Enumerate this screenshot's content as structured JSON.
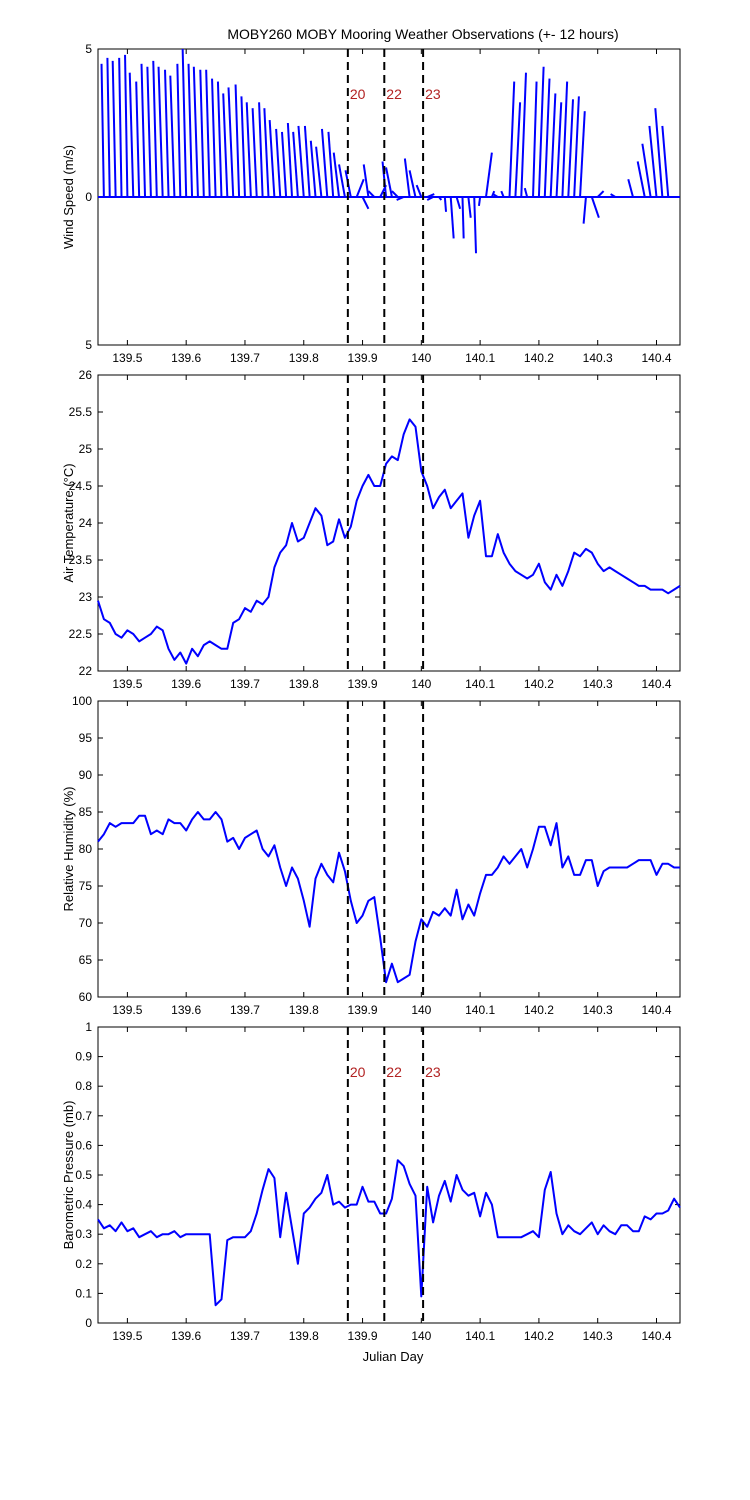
{
  "figure": {
    "title": "MOBY260 MOBY Mooring Weather Observations (+- 12 hours)",
    "xlabel": "Julian Day",
    "colors": {
      "series": "#0000ff",
      "marker_line": "#000000",
      "marker_text": "#b22222",
      "axes": "#000000"
    }
  },
  "chart_data": [
    {
      "type": "line",
      "name": "wind",
      "chart_kind": "wind-stick",
      "ylabel": "Wind Speed (m/s)",
      "xlim": [
        139.45,
        140.44
      ],
      "ylim": [
        -5,
        5
      ],
      "yticklabels": [
        "5",
        "0",
        "5"
      ],
      "xticks": [
        "139.5",
        "139.6",
        "139.7",
        "139.8",
        "139.9",
        "140",
        "140.1",
        "140.2",
        "140.3",
        "140.4"
      ],
      "marker_lines": [
        139.875,
        139.937,
        140.003
      ],
      "marker_labels": [
        "20",
        "22",
        "23"
      ],
      "sticks": [
        {
          "x": 139.46,
          "u": -0.004,
          "v": 4.5
        },
        {
          "x": 139.47,
          "u": -0.004,
          "v": 4.7
        },
        {
          "x": 139.48,
          "u": -0.005,
          "v": 4.6
        },
        {
          "x": 139.49,
          "u": -0.004,
          "v": 4.7
        },
        {
          "x": 139.5,
          "u": -0.004,
          "v": 4.8
        },
        {
          "x": 139.51,
          "u": -0.006,
          "v": 4.2
        },
        {
          "x": 139.52,
          "u": -0.005,
          "v": 3.9
        },
        {
          "x": 139.53,
          "u": -0.006,
          "v": 4.5
        },
        {
          "x": 139.54,
          "u": -0.006,
          "v": 4.4
        },
        {
          "x": 139.55,
          "u": -0.006,
          "v": 4.6
        },
        {
          "x": 139.56,
          "u": -0.007,
          "v": 4.4
        },
        {
          "x": 139.57,
          "u": -0.006,
          "v": 4.3
        },
        {
          "x": 139.58,
          "u": -0.007,
          "v": 4.1
        },
        {
          "x": 139.59,
          "u": -0.005,
          "v": 4.5
        },
        {
          "x": 139.6,
          "u": -0.006,
          "v": 5.0
        },
        {
          "x": 139.61,
          "u": -0.006,
          "v": 4.5
        },
        {
          "x": 139.62,
          "u": -0.007,
          "v": 4.4
        },
        {
          "x": 139.63,
          "u": -0.006,
          "v": 4.3
        },
        {
          "x": 139.64,
          "u": -0.006,
          "v": 4.3
        },
        {
          "x": 139.65,
          "u": -0.006,
          "v": 4.0
        },
        {
          "x": 139.66,
          "u": -0.006,
          "v": 3.9
        },
        {
          "x": 139.67,
          "u": -0.007,
          "v": 3.5
        },
        {
          "x": 139.68,
          "u": -0.008,
          "v": 3.7
        },
        {
          "x": 139.69,
          "u": -0.006,
          "v": 3.8
        },
        {
          "x": 139.7,
          "u": -0.006,
          "v": 3.4
        },
        {
          "x": 139.71,
          "u": -0.007,
          "v": 3.2
        },
        {
          "x": 139.72,
          "u": -0.007,
          "v": 3.0
        },
        {
          "x": 139.73,
          "u": -0.006,
          "v": 3.2
        },
        {
          "x": 139.74,
          "u": -0.007,
          "v": 3.0
        },
        {
          "x": 139.75,
          "u": -0.008,
          "v": 2.6
        },
        {
          "x": 139.76,
          "u": -0.007,
          "v": 2.3
        },
        {
          "x": 139.77,
          "u": -0.007,
          "v": 2.2
        },
        {
          "x": 139.78,
          "u": -0.007,
          "v": 2.5
        },
        {
          "x": 139.79,
          "u": -0.008,
          "v": 2.2
        },
        {
          "x": 139.8,
          "u": -0.009,
          "v": 2.4
        },
        {
          "x": 139.81,
          "u": -0.008,
          "v": 2.4
        },
        {
          "x": 139.82,
          "u": -0.008,
          "v": 1.9
        },
        {
          "x": 139.83,
          "u": -0.009,
          "v": 1.7
        },
        {
          "x": 139.84,
          "u": -0.009,
          "v": 2.3
        },
        {
          "x": 139.85,
          "u": -0.008,
          "v": 2.2
        },
        {
          "x": 139.86,
          "u": -0.009,
          "v": 1.5
        },
        {
          "x": 139.87,
          "u": -0.01,
          "v": 1.1
        },
        {
          "x": 139.88,
          "u": -0.009,
          "v": 0.9
        },
        {
          "x": 139.89,
          "u": 0.012,
          "v": 0.6
        },
        {
          "x": 139.9,
          "u": 0.01,
          "v": -0.4
        },
        {
          "x": 139.91,
          "u": -0.008,
          "v": 1.1
        },
        {
          "x": 139.92,
          "u": -0.01,
          "v": 0.2
        },
        {
          "x": 139.93,
          "u": 0.01,
          "v": 0.4
        },
        {
          "x": 139.94,
          "u": -0.006,
          "v": 1.2
        },
        {
          "x": 139.95,
          "u": -0.01,
          "v": 1.0
        },
        {
          "x": 139.96,
          "u": -0.01,
          "v": 0.2
        },
        {
          "x": 139.97,
          "u": -0.012,
          "v": -0.1
        },
        {
          "x": 139.98,
          "u": -0.008,
          "v": 1.3
        },
        {
          "x": 139.99,
          "u": -0.01,
          "v": 0.9
        },
        {
          "x": 140.0,
          "u": -0.008,
          "v": 0.4
        },
        {
          "x": 140.01,
          "u": 0.012,
          "v": 0.1
        },
        {
          "x": 140.02,
          "u": -0.01,
          "v": -0.1
        },
        {
          "x": 140.03,
          "u": 0.004,
          "v": -0.1
        },
        {
          "x": 140.04,
          "u": 0.002,
          "v": -0.5
        },
        {
          "x": 140.05,
          "u": 0.005,
          "v": -1.4
        },
        {
          "x": 140.06,
          "u": 0.006,
          "v": -0.4
        },
        {
          "x": 140.07,
          "u": 0.002,
          "v": -1.4
        },
        {
          "x": 140.08,
          "u": 0.004,
          "v": -0.7
        },
        {
          "x": 140.09,
          "u": 0.003,
          "v": -1.9
        },
        {
          "x": 140.1,
          "u": -0.002,
          "v": -0.3
        },
        {
          "x": 140.11,
          "u": 0.01,
          "v": 1.5
        },
        {
          "x": 140.12,
          "u": 0.004,
          "v": 0.2
        },
        {
          "x": 140.13,
          "u": -0.008,
          "v": 0.1
        },
        {
          "x": 140.14,
          "u": -0.004,
          "v": 0.2
        },
        {
          "x": 140.15,
          "u": 0.008,
          "v": 3.9
        },
        {
          "x": 140.16,
          "u": 0.008,
          "v": 3.2
        },
        {
          "x": 140.17,
          "u": 0.008,
          "v": 4.2
        },
        {
          "x": 140.18,
          "u": -0.004,
          "v": 0.3
        },
        {
          "x": 140.19,
          "u": 0.006,
          "v": 3.9
        },
        {
          "x": 140.2,
          "u": 0.008,
          "v": 4.4
        },
        {
          "x": 140.21,
          "u": 0.008,
          "v": 4.0
        },
        {
          "x": 140.22,
          "u": 0.008,
          "v": 3.5
        },
        {
          "x": 140.23,
          "u": 0.008,
          "v": 3.2
        },
        {
          "x": 140.24,
          "u": 0.008,
          "v": 3.9
        },
        {
          "x": 140.25,
          "u": 0.008,
          "v": 3.3
        },
        {
          "x": 140.26,
          "u": 0.008,
          "v": 3.4
        },
        {
          "x": 140.27,
          "u": 0.008,
          "v": 2.9
        },
        {
          "x": 140.28,
          "u": -0.004,
          "v": -0.9
        },
        {
          "x": 140.29,
          "u": 0.012,
          "v": -0.7
        },
        {
          "x": 140.3,
          "u": 0.01,
          "v": 0.2
        },
        {
          "x": 140.33,
          "u": -0.008,
          "v": 0.1
        },
        {
          "x": 140.36,
          "u": -0.008,
          "v": 0.6
        },
        {
          "x": 140.38,
          "u": -0.012,
          "v": 1.2
        },
        {
          "x": 140.39,
          "u": -0.014,
          "v": 1.8
        },
        {
          "x": 140.4,
          "u": -0.012,
          "v": 2.4
        },
        {
          "x": 140.41,
          "u": -0.012,
          "v": 3.0
        },
        {
          "x": 140.42,
          "u": -0.01,
          "v": 2.4
        },
        {
          "x": 140.43,
          "u": -0.004,
          "v": 0.0
        }
      ]
    },
    {
      "type": "line",
      "name": "air-temperature",
      "ylabel": "Air Temperature (°C)",
      "xlim": [
        139.45,
        140.44
      ],
      "ylim": [
        22,
        26
      ],
      "yticks": [
        22,
        22.5,
        23,
        23.5,
        24,
        24.5,
        25,
        25.5,
        26
      ],
      "xticks": [
        "139.5",
        "139.6",
        "139.7",
        "139.8",
        "139.9",
        "140",
        "140.1",
        "140.2",
        "140.3",
        "140.4"
      ],
      "marker_lines": [
        139.875,
        139.937,
        140.003
      ],
      "x": [
        139.45,
        139.46,
        139.47,
        139.48,
        139.49,
        139.5,
        139.51,
        139.52,
        139.53,
        139.54,
        139.55,
        139.56,
        139.57,
        139.58,
        139.59,
        139.6,
        139.61,
        139.62,
        139.63,
        139.64,
        139.65,
        139.66,
        139.67,
        139.68,
        139.69,
        139.7,
        139.71,
        139.72,
        139.73,
        139.74,
        139.75,
        139.76,
        139.77,
        139.78,
        139.79,
        139.8,
        139.81,
        139.82,
        139.83,
        139.84,
        139.85,
        139.86,
        139.87,
        139.88,
        139.89,
        139.9,
        139.91,
        139.92,
        139.93,
        139.94,
        139.95,
        139.96,
        139.97,
        139.98,
        139.99,
        140.0,
        140.01,
        140.02,
        140.03,
        140.04,
        140.05,
        140.06,
        140.07,
        140.08,
        140.09,
        140.1,
        140.11,
        140.12,
        140.13,
        140.14,
        140.15,
        140.16,
        140.17,
        140.18,
        140.19,
        140.2,
        140.21,
        140.22,
        140.23,
        140.24,
        140.25,
        140.26,
        140.27,
        140.28,
        140.29,
        140.3,
        140.31,
        140.32,
        140.33,
        140.34,
        140.35,
        140.36,
        140.37,
        140.38,
        140.39,
        140.4,
        140.41,
        140.42,
        140.43,
        140.44
      ],
      "y": [
        22.95,
        22.7,
        22.65,
        22.5,
        22.45,
        22.55,
        22.5,
        22.4,
        22.45,
        22.5,
        22.6,
        22.55,
        22.3,
        22.15,
        22.25,
        22.1,
        22.3,
        22.2,
        22.35,
        22.4,
        22.35,
        22.3,
        22.3,
        22.65,
        22.7,
        22.85,
        22.8,
        22.95,
        22.9,
        23.0,
        23.4,
        23.6,
        23.7,
        24.0,
        23.75,
        23.8,
        24.0,
        24.2,
        24.1,
        23.7,
        23.75,
        24.05,
        23.8,
        23.95,
        24.3,
        24.5,
        24.65,
        24.5,
        24.5,
        24.8,
        24.9,
        24.85,
        25.2,
        25.4,
        25.3,
        24.7,
        24.5,
        24.2,
        24.35,
        24.45,
        24.2,
        24.3,
        24.4,
        23.8,
        24.1,
        24.3,
        23.55,
        23.55,
        23.85,
        23.6,
        23.45,
        23.35,
        23.3,
        23.25,
        23.3,
        23.45,
        23.2,
        23.1,
        23.3,
        23.15,
        23.35,
        23.6,
        23.55,
        23.65,
        23.6,
        23.45,
        23.35,
        23.4,
        23.35,
        23.3,
        23.25,
        23.2,
        23.15,
        23.15,
        23.1,
        23.1,
        23.1,
        23.05,
        23.1,
        23.15
      ]
    },
    {
      "type": "line",
      "name": "relative-humidity",
      "ylabel": "Relative Humidity (%)",
      "xlim": [
        139.45,
        140.44
      ],
      "ylim": [
        60,
        100
      ],
      "yticks": [
        60,
        65,
        70,
        75,
        80,
        85,
        90,
        95,
        100
      ],
      "xticks": [
        "139.5",
        "139.6",
        "139.7",
        "139.8",
        "139.9",
        "140",
        "140.1",
        "140.2",
        "140.3",
        "140.4"
      ],
      "marker_lines": [
        139.875,
        139.937,
        140.003
      ],
      "x": [
        139.45,
        139.46,
        139.47,
        139.48,
        139.49,
        139.5,
        139.51,
        139.52,
        139.53,
        139.54,
        139.55,
        139.56,
        139.57,
        139.58,
        139.59,
        139.6,
        139.61,
        139.62,
        139.63,
        139.64,
        139.65,
        139.66,
        139.67,
        139.68,
        139.69,
        139.7,
        139.71,
        139.72,
        139.73,
        139.74,
        139.75,
        139.76,
        139.77,
        139.78,
        139.79,
        139.8,
        139.81,
        139.82,
        139.83,
        139.84,
        139.85,
        139.86,
        139.87,
        139.88,
        139.89,
        139.9,
        139.91,
        139.92,
        139.93,
        139.94,
        139.95,
        139.96,
        139.97,
        139.98,
        139.99,
        140.0,
        140.01,
        140.02,
        140.03,
        140.04,
        140.05,
        140.06,
        140.07,
        140.08,
        140.09,
        140.1,
        140.11,
        140.12,
        140.13,
        140.14,
        140.15,
        140.16,
        140.17,
        140.18,
        140.19,
        140.2,
        140.21,
        140.22,
        140.23,
        140.24,
        140.25,
        140.26,
        140.27,
        140.28,
        140.29,
        140.3,
        140.31,
        140.32,
        140.33,
        140.34,
        140.35,
        140.36,
        140.37,
        140.38,
        140.39,
        140.4,
        140.41,
        140.42,
        140.43,
        140.44
      ],
      "y": [
        81,
        82,
        83.5,
        83,
        83.5,
        83.5,
        83.5,
        84.5,
        84.5,
        82,
        82.5,
        82,
        84,
        83.5,
        83.5,
        82.5,
        84,
        85,
        84,
        84,
        85,
        84,
        81,
        81.5,
        80,
        81.5,
        82,
        82.5,
        80,
        79,
        80.5,
        77.5,
        75,
        77.5,
        76,
        73,
        69.5,
        76,
        78,
        76.5,
        75.5,
        79.5,
        77,
        73,
        70,
        71,
        73,
        73.5,
        68,
        62,
        64.5,
        62,
        62.5,
        63,
        67.5,
        70.5,
        69.5,
        71.5,
        71,
        72,
        71,
        74.5,
        70.5,
        72.5,
        71,
        74,
        76.5,
        76.5,
        77.5,
        79,
        78,
        79,
        80,
        77.5,
        80,
        83,
        83,
        80.5,
        83.5,
        77.5,
        79,
        76.5,
        76.5,
        78.5,
        78.5,
        75,
        77,
        77.5,
        77.5,
        77.5,
        77.5,
        78,
        78.5,
        78.5,
        78.5,
        76.5,
        78,
        78,
        77.5,
        77.5
      ]
    },
    {
      "type": "line",
      "name": "barometric-pressure",
      "ylabel": "Barometric Pressure (mb)",
      "xlabel": "Julian Day",
      "xlim": [
        139.45,
        140.44
      ],
      "ylim": [
        0,
        1
      ],
      "yticks": [
        0,
        0.1,
        0.2,
        0.3,
        0.4,
        0.5,
        0.6,
        0.7,
        0.8,
        0.9,
        1
      ],
      "xticks": [
        "139.5",
        "139.6",
        "139.7",
        "139.8",
        "139.9",
        "140",
        "140.1",
        "140.2",
        "140.3",
        "140.4"
      ],
      "marker_lines": [
        139.875,
        139.937,
        140.003
      ],
      "marker_labels": [
        "20",
        "22",
        "23"
      ],
      "x": [
        139.45,
        139.46,
        139.47,
        139.48,
        139.49,
        139.5,
        139.51,
        139.52,
        139.53,
        139.54,
        139.55,
        139.56,
        139.57,
        139.58,
        139.59,
        139.6,
        139.61,
        139.62,
        139.63,
        139.64,
        139.65,
        139.66,
        139.67,
        139.68,
        139.69,
        139.7,
        139.71,
        139.72,
        139.73,
        139.74,
        139.75,
        139.76,
        139.77,
        139.78,
        139.79,
        139.8,
        139.81,
        139.82,
        139.83,
        139.84,
        139.85,
        139.86,
        139.87,
        139.88,
        139.89,
        139.9,
        139.91,
        139.92,
        139.93,
        139.94,
        139.95,
        139.96,
        139.97,
        139.98,
        139.99,
        140.0,
        140.01,
        140.02,
        140.03,
        140.04,
        140.05,
        140.06,
        140.07,
        140.08,
        140.09,
        140.1,
        140.11,
        140.12,
        140.13,
        140.14,
        140.15,
        140.16,
        140.17,
        140.18,
        140.19,
        140.2,
        140.21,
        140.22,
        140.23,
        140.24,
        140.25,
        140.26,
        140.27,
        140.28,
        140.29,
        140.3,
        140.31,
        140.32,
        140.33,
        140.34,
        140.35,
        140.36,
        140.37,
        140.38,
        140.39,
        140.4,
        140.41,
        140.42,
        140.43,
        140.44
      ],
      "y": [
        0.35,
        0.32,
        0.33,
        0.31,
        0.34,
        0.31,
        0.32,
        0.29,
        0.3,
        0.31,
        0.29,
        0.3,
        0.3,
        0.31,
        0.29,
        0.3,
        0.3,
        0.3,
        0.3,
        0.3,
        0.06,
        0.08,
        0.28,
        0.29,
        0.29,
        0.29,
        0.31,
        0.37,
        0.45,
        0.52,
        0.49,
        0.29,
        0.44,
        0.32,
        0.2,
        0.37,
        0.39,
        0.42,
        0.44,
        0.5,
        0.4,
        0.41,
        0.39,
        0.4,
        0.4,
        0.46,
        0.41,
        0.41,
        0.37,
        0.37,
        0.42,
        0.55,
        0.53,
        0.47,
        0.43,
        0.09,
        0.46,
        0.34,
        0.43,
        0.48,
        0.41,
        0.5,
        0.45,
        0.43,
        0.44,
        0.36,
        0.44,
        0.4,
        0.29,
        0.29,
        0.29,
        0.29,
        0.29,
        0.3,
        0.31,
        0.29,
        0.45,
        0.51,
        0.37,
        0.3,
        0.33,
        0.31,
        0.3,
        0.32,
        0.34,
        0.3,
        0.33,
        0.31,
        0.3,
        0.33,
        0.33,
        0.31,
        0.31,
        0.36,
        0.35,
        0.37,
        0.37,
        0.38,
        0.42,
        0.39
      ]
    }
  ]
}
